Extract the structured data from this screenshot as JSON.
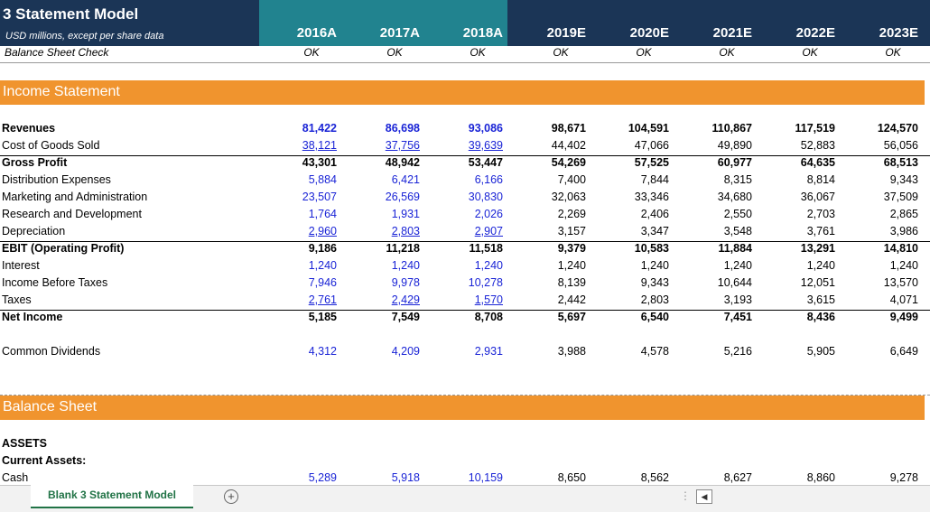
{
  "header": {
    "title": "3 Statement Model",
    "subtitle": "USD millions, except per share data",
    "check_label": "Balance Sheet Check",
    "years": [
      "2016A",
      "2017A",
      "2018A",
      "2019E",
      "2020E",
      "2021E",
      "2022E",
      "2023E"
    ],
    "checks": [
      "OK",
      "OK",
      "OK",
      "OK",
      "OK",
      "OK",
      "OK",
      "OK"
    ]
  },
  "income_statement": {
    "title": "Income Statement",
    "rows": [
      {
        "label": "Revenues",
        "bold": true,
        "values": [
          "81,422",
          "86,698",
          "93,086",
          "98,671",
          "104,591",
          "110,867",
          "117,519",
          "124,570"
        ]
      },
      {
        "label": "Cost of Goods Sold",
        "bold": false,
        "values": [
          "38,121",
          "37,756",
          "39,639",
          "44,402",
          "47,066",
          "49,890",
          "52,883",
          "56,056"
        ]
      },
      {
        "label": "Gross Profit",
        "bold": true,
        "values": [
          "43,301",
          "48,942",
          "53,447",
          "54,269",
          "57,525",
          "60,977",
          "64,635",
          "68,513"
        ]
      },
      {
        "label": "Distribution Expenses",
        "bold": false,
        "values": [
          "5,884",
          "6,421",
          "6,166",
          "7,400",
          "7,844",
          "8,315",
          "8,814",
          "9,343"
        ]
      },
      {
        "label": "Marketing and Administration",
        "bold": false,
        "values": [
          "23,507",
          "26,569",
          "30,830",
          "32,063",
          "33,346",
          "34,680",
          "36,067",
          "37,509"
        ]
      },
      {
        "label": "Research and Development",
        "bold": false,
        "values": [
          "1,764",
          "1,931",
          "2,026",
          "2,269",
          "2,406",
          "2,550",
          "2,703",
          "2,865"
        ]
      },
      {
        "label": "Depreciation",
        "bold": false,
        "values": [
          "2,960",
          "2,803",
          "2,907",
          "3,157",
          "3,347",
          "3,548",
          "3,761",
          "3,986"
        ]
      },
      {
        "label": "EBIT (Operating Profit)",
        "bold": true,
        "values": [
          "9,186",
          "11,218",
          "11,518",
          "9,379",
          "10,583",
          "11,884",
          "13,291",
          "14,810"
        ]
      },
      {
        "label": "Interest",
        "bold": false,
        "values": [
          "1,240",
          "1,240",
          "1,240",
          "1,240",
          "1,240",
          "1,240",
          "1,240",
          "1,240"
        ]
      },
      {
        "label": "Income Before Taxes",
        "bold": false,
        "values": [
          "7,946",
          "9,978",
          "10,278",
          "8,139",
          "9,343",
          "10,644",
          "12,051",
          "13,570"
        ]
      },
      {
        "label": "Taxes",
        "bold": false,
        "values": [
          "2,761",
          "2,429",
          "1,570",
          "2,442",
          "2,803",
          "3,193",
          "3,615",
          "4,071"
        ]
      },
      {
        "label": "Net Income",
        "bold": true,
        "values": [
          "5,185",
          "7,549",
          "8,708",
          "5,697",
          "6,540",
          "7,451",
          "8,436",
          "9,499"
        ]
      }
    ],
    "dividends": {
      "label": "Common Dividends",
      "values": [
        "4,312",
        "4,209",
        "2,931",
        "3,988",
        "4,578",
        "5,216",
        "5,905",
        "6,649"
      ]
    }
  },
  "balance_sheet": {
    "title": "Balance Sheet",
    "assets_label": "ASSETS",
    "current_assets_label": "Current Assets:",
    "cash": {
      "label": "Cash",
      "values": [
        "5,289",
        "5,918",
        "10,159",
        "8,650",
        "8,562",
        "8,627",
        "8,860",
        "9,278"
      ]
    }
  },
  "colors": {
    "header_navy": "#1b3556",
    "header_teal": "#21838f",
    "section_orange": "#f0942e",
    "input_blue": "#1a24d6",
    "tab_green": "#217346"
  },
  "tabs": {
    "active": "Blank 3 Statement Model",
    "add_symbol": "+",
    "dots": "⋮",
    "scroll_left": "◀"
  }
}
